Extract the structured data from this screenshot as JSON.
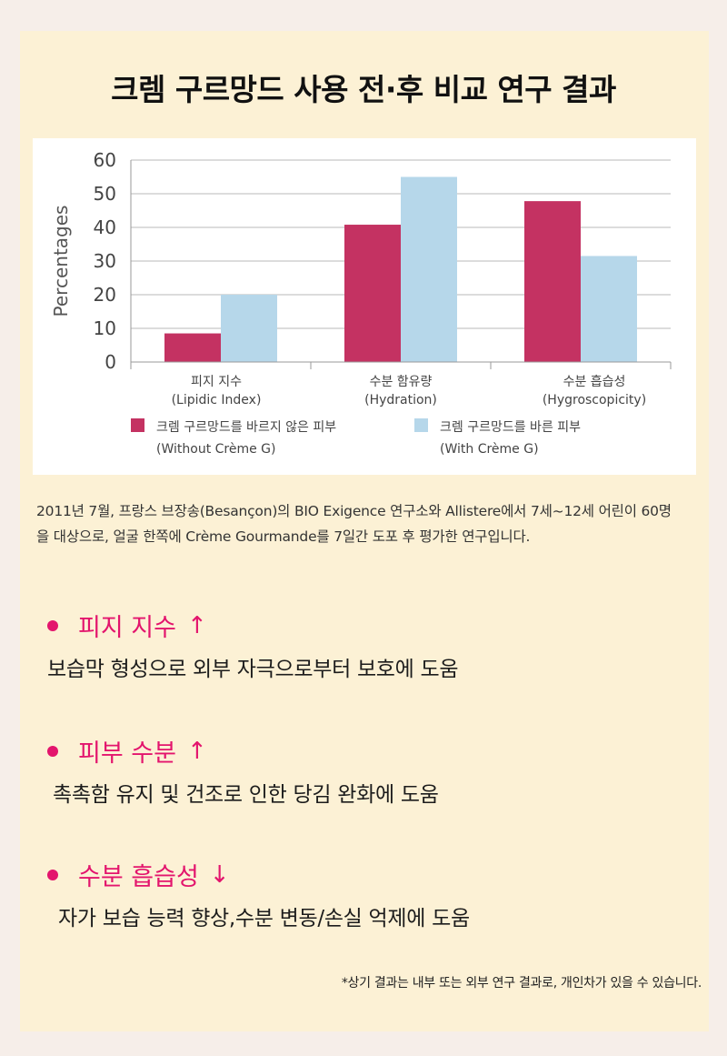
{
  "title": "크렘 구르망드 사용 전·후 비교 연구 결과",
  "chart_data": {
    "type": "bar",
    "ylabel": "Percentages",
    "ylim": [
      0,
      60
    ],
    "yticks": [
      0,
      10,
      20,
      30,
      40,
      50,
      60
    ],
    "categories": [
      {
        "name": "피지 지수",
        "sub": "(Lipidic Index)"
      },
      {
        "name": "수분 함유량",
        "sub": "(Hydration)"
      },
      {
        "name": "수분 흡습성",
        "sub": "(Hygroscopicity)"
      }
    ],
    "series": [
      {
        "name": "크렘 구르망드를 바르지 않은 피부",
        "name_en": "(Without Crème G)",
        "color": "#c43262",
        "values": [
          8.5,
          40.8,
          47.8
        ]
      },
      {
        "name": "크렘 구르망드를 바른 피부",
        "name_en": "(With Crème G)",
        "color": "#b6d7ea",
        "values": [
          20,
          55,
          31.5
        ]
      }
    ],
    "grid": true,
    "legend_position": "bottom"
  },
  "description": "2011년 7월, 프랑스 브장송(Besançon)의 BIO Exigence 연구소와 Allistere에서 7세~12세 어린이 60명을 대상으로, 얼굴 한쪽에 Crème Gourmande를 7일간 도포 후 평가한 연구입니다.",
  "bullets": [
    {
      "heading": "피지 지수",
      "arrow": "↑",
      "body": "보습막 형성으로 외부 자극으로부터 보호에 도움"
    },
    {
      "heading": "피부 수분",
      "arrow": "↑",
      "body": "촉촉함 유지 및 건조로 인한 당김 완화에 도움"
    },
    {
      "heading": "수분 흡습성",
      "arrow": "↓",
      "body": "자가 보습 능력 향상,수분 변동/손실 억제에 도움"
    }
  ],
  "footnote": "*상기 결과는 내부 또는 외부 연구 결과로, 개인차가 있을 수 있습니다.",
  "colors": {
    "accent": "#e3156d",
    "card_bg": "#fcf1d5",
    "page_bg": "#f6eee9"
  }
}
